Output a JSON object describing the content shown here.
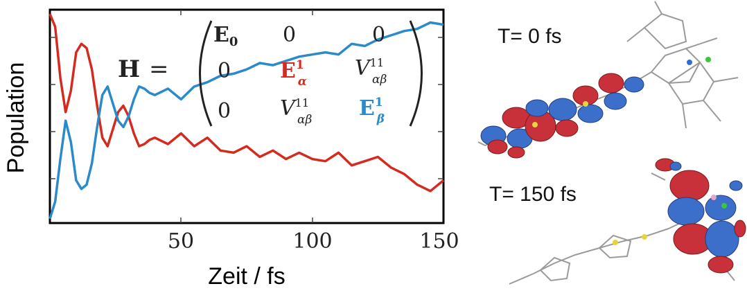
{
  "chart_data": {
    "type": "line",
    "ylabel": "Population",
    "xlabel": "Zeit / fs",
    "xlim": [
      0,
      150
    ],
    "ylim": [
      0,
      1
    ],
    "xticks": [
      "50",
      "100",
      "150"
    ],
    "grid": false,
    "series": [
      {
        "color": "#d42a20",
        "x": [
          0,
          2,
          4,
          6,
          8,
          10,
          12,
          14,
          16,
          18,
          20,
          22,
          24,
          26,
          28,
          30,
          32,
          34,
          36,
          38,
          40,
          45,
          50,
          55,
          60,
          65,
          70,
          75,
          80,
          85,
          90,
          95,
          100,
          105,
          110,
          115,
          120,
          125,
          130,
          135,
          140,
          145,
          150
        ],
        "y": [
          0.98,
          0.92,
          0.68,
          0.52,
          0.62,
          0.8,
          0.84,
          0.82,
          0.72,
          0.55,
          0.4,
          0.36,
          0.44,
          0.52,
          0.55,
          0.5,
          0.42,
          0.36,
          0.37,
          0.39,
          0.4,
          0.37,
          0.42,
          0.36,
          0.4,
          0.34,
          0.33,
          0.36,
          0.31,
          0.34,
          0.3,
          0.33,
          0.3,
          0.29,
          0.33,
          0.27,
          0.29,
          0.31,
          0.26,
          0.23,
          0.18,
          0.15,
          0.2
        ]
      },
      {
        "color": "#2b8ac9",
        "x": [
          0,
          2,
          4,
          6,
          8,
          10,
          12,
          14,
          16,
          18,
          20,
          22,
          24,
          26,
          28,
          30,
          32,
          34,
          36,
          38,
          40,
          45,
          50,
          55,
          60,
          65,
          70,
          75,
          80,
          85,
          90,
          95,
          100,
          105,
          110,
          115,
          120,
          125,
          130,
          135,
          140,
          145,
          150
        ],
        "y": [
          0.02,
          0.1,
          0.3,
          0.48,
          0.38,
          0.2,
          0.16,
          0.18,
          0.28,
          0.45,
          0.6,
          0.64,
          0.56,
          0.48,
          0.45,
          0.5,
          0.58,
          0.64,
          0.63,
          0.61,
          0.6,
          0.63,
          0.58,
          0.64,
          0.66,
          0.69,
          0.7,
          0.72,
          0.75,
          0.74,
          0.76,
          0.78,
          0.79,
          0.8,
          0.79,
          0.84,
          0.83,
          0.86,
          0.88,
          0.9,
          0.91,
          0.94,
          0.93
        ]
      }
    ]
  },
  "equation": {
    "lhs": "H =",
    "r1": [
      "E0",
      "0",
      "0"
    ],
    "r2": [
      "0",
      "E1α",
      "V11αβ"
    ],
    "r3": [
      "0",
      "V11αβ",
      "E1β"
    ]
  },
  "molecules": {
    "label_top": "T= 0 fs",
    "label_bottom": "T= 150 fs"
  }
}
